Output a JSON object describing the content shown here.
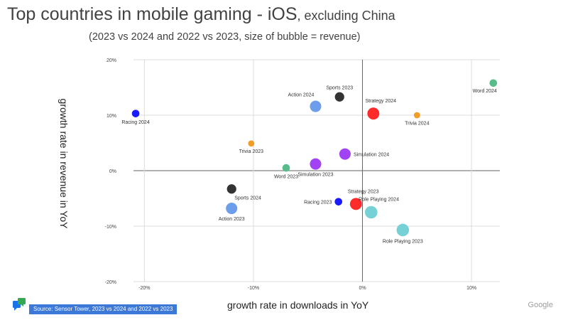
{
  "header": {
    "title_main": "Top countries in mobile gaming - iOS",
    "title_suffix": ", excluding China",
    "subtitle": "(2023 vs 2024 and 2022 vs 2023, size of bubble = revenue)"
  },
  "footer": {
    "source": "Source: Sensor Tower, 2023 vs 2024 and 2022 vs 2023",
    "brand": "Google"
  },
  "chart_data": {
    "type": "scatter",
    "title": "Top countries in mobile gaming - iOS, excluding China",
    "xlabel": "growth rate in downloads in YoY",
    "ylabel": "growth rate in revenue in YoY",
    "xlim": [
      -21,
      12.6
    ],
    "ylim": [
      -20,
      20
    ],
    "xticks": [
      -20,
      -10,
      0,
      10
    ],
    "xtick_labels": [
      "-20%",
      "-10%",
      "0%",
      "10%"
    ],
    "yticks": [
      -20,
      -10,
      0,
      10,
      20
    ],
    "ytick_labels": [
      "-20%",
      "-10%",
      "0%",
      "10%",
      "20%"
    ],
    "points": [
      {
        "label": "Racing 2024",
        "x": -20.8,
        "y": 10.3,
        "size": 2,
        "color": "#1a1aff",
        "label_pos": "below"
      },
      {
        "label": "Action 2024",
        "x": -4.3,
        "y": 11.6,
        "size": 7,
        "color": "#6d9eeb",
        "label_pos": "above-left"
      },
      {
        "label": "Sports 2023",
        "x": -2.1,
        "y": 13.3,
        "size": 4,
        "color": "#333333",
        "label_pos": "above"
      },
      {
        "label": "Strategy 2024",
        "x": 1.0,
        "y": 10.3,
        "size": 8,
        "color": "#ff2a2a",
        "label_pos": "above-right"
      },
      {
        "label": "Word 2024",
        "x": 12.0,
        "y": 15.8,
        "size": 2,
        "color": "#57bb8a",
        "label_pos": "below-left"
      },
      {
        "label": "Trivia 2024",
        "x": 5.0,
        "y": 10.0,
        "size": 1,
        "color": "#f29e26",
        "label_pos": "below"
      },
      {
        "label": "Trivia 2023",
        "x": -10.2,
        "y": 4.9,
        "size": 1,
        "color": "#f29e26",
        "label_pos": "below"
      },
      {
        "label": "Simulation 2024",
        "x": -1.6,
        "y": 3.0,
        "size": 7,
        "color": "#a142f4",
        "label_pos": "right"
      },
      {
        "label": "Word 2023",
        "x": -7.0,
        "y": 0.5,
        "size": 2,
        "color": "#57bb8a",
        "label_pos": "below"
      },
      {
        "label": "Simulation 2023",
        "x": -4.3,
        "y": 1.2,
        "size": 7,
        "color": "#a142f4",
        "label_pos": "below"
      },
      {
        "label": "Sports 2024",
        "x": -12.0,
        "y": -3.3,
        "size": 4,
        "color": "#333333",
        "label_pos": "below-right"
      },
      {
        "label": "Action 2023",
        "x": -12.0,
        "y": -6.8,
        "size": 7,
        "color": "#6d9eeb",
        "label_pos": "below"
      },
      {
        "label": "Racing 2023",
        "x": -2.2,
        "y": -5.6,
        "size": 2,
        "color": "#1a1aff",
        "label_pos": "left"
      },
      {
        "label": "Strategy 2023",
        "x": -0.6,
        "y": -6.0,
        "size": 8,
        "color": "#ff2a2a",
        "label_pos": "above-right"
      },
      {
        "label": "Role Playing 2024",
        "x": 0.8,
        "y": -7.5,
        "size": 9,
        "color": "#76d1d6",
        "label_pos": "above-right"
      },
      {
        "label": "Role Playing 2023",
        "x": 3.7,
        "y": -10.7,
        "size": 9,
        "color": "#76d1d6",
        "label_pos": "below"
      }
    ]
  }
}
